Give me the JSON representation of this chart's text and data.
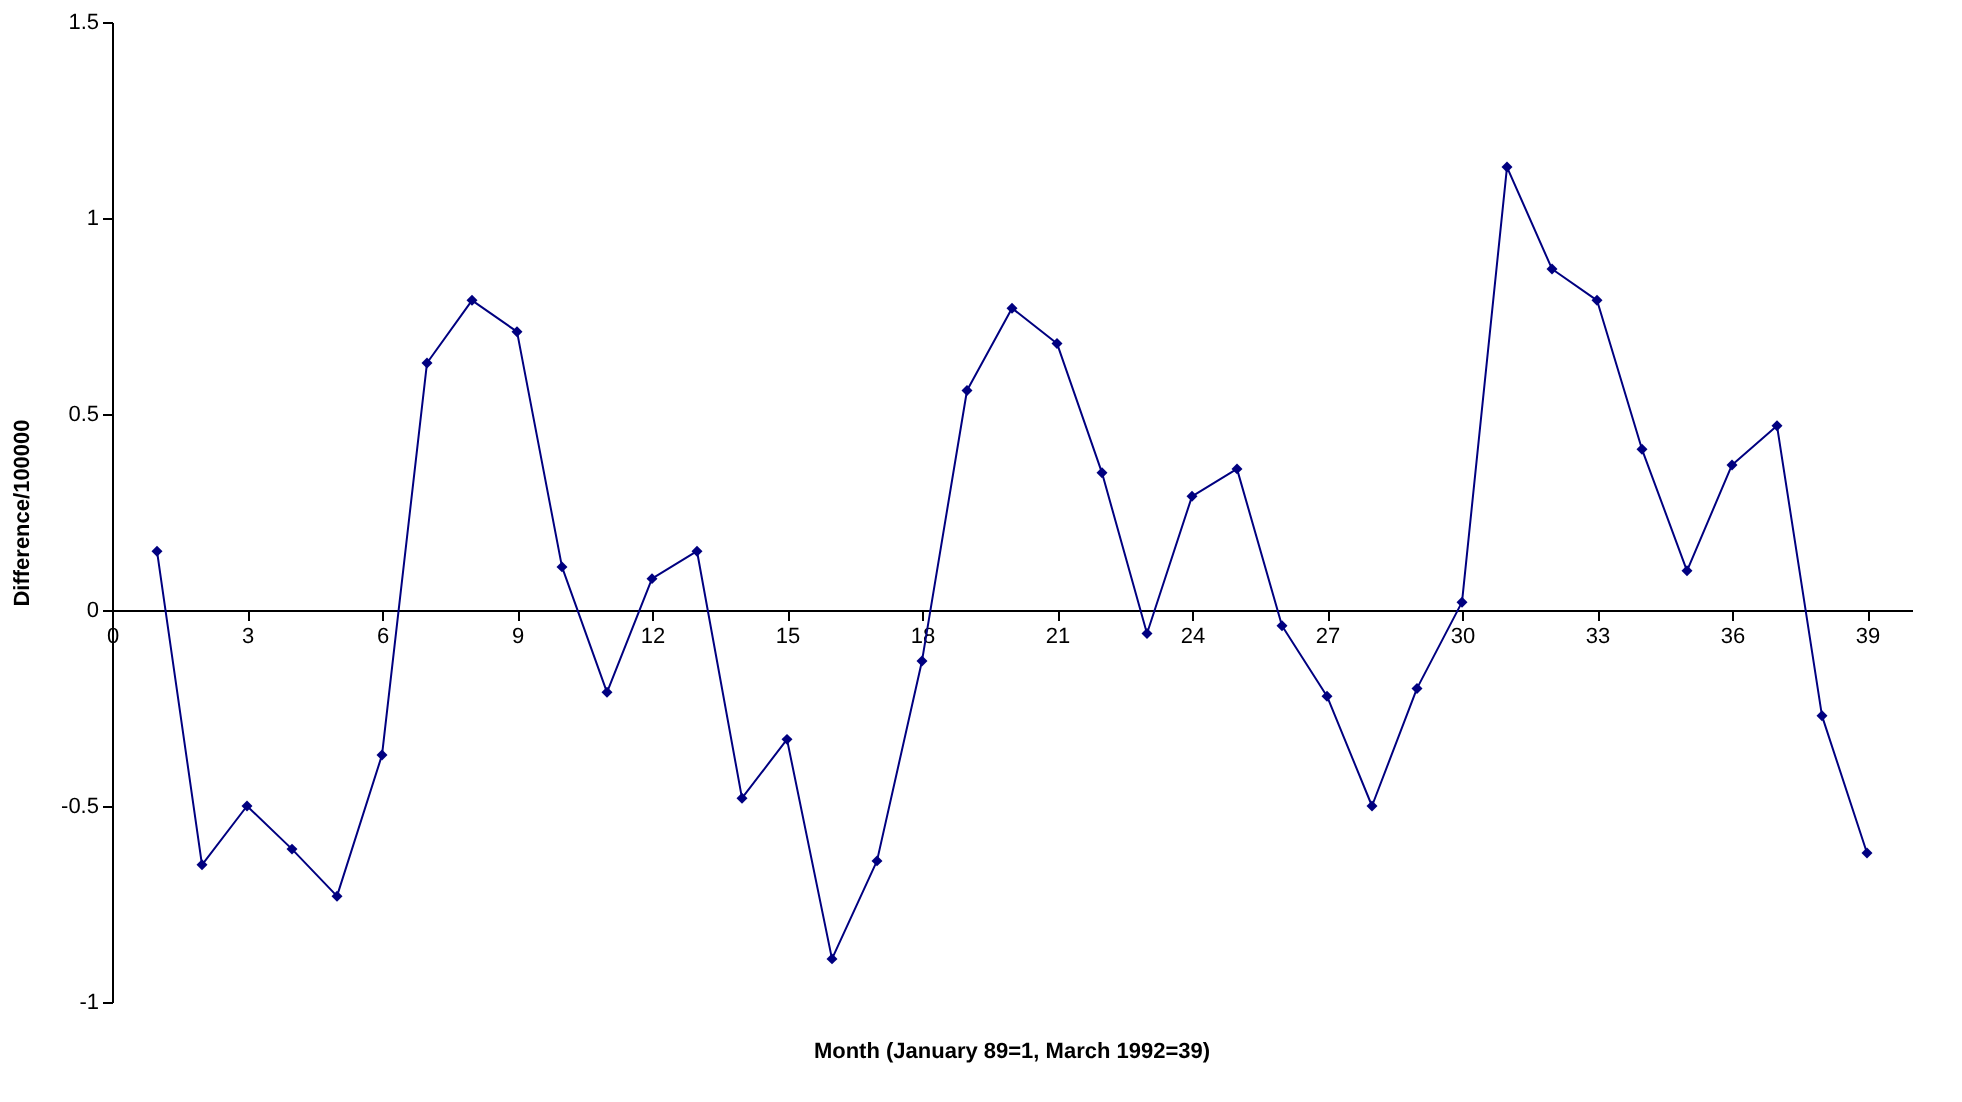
{
  "chart_data": {
    "type": "line",
    "xlabel": "Month (January 89=1, March 1992=39)",
    "ylabel": "Difference/100000",
    "x": [
      1,
      2,
      3,
      4,
      5,
      6,
      7,
      8,
      9,
      10,
      11,
      12,
      13,
      14,
      15,
      16,
      17,
      18,
      19,
      20,
      21,
      22,
      23,
      24,
      25,
      26,
      27,
      28,
      29,
      30,
      31,
      32,
      33,
      34,
      35,
      36,
      37,
      38,
      39
    ],
    "series": [
      {
        "color": "#000080",
        "values": [
          0.15,
          -0.65,
          -0.5,
          -0.61,
          -0.73,
          -0.37,
          0.63,
          0.79,
          0.71,
          0.11,
          -0.21,
          0.08,
          0.15,
          -0.48,
          -0.33,
          -0.89,
          -0.64,
          -0.13,
          0.56,
          0.77,
          0.68,
          0.35,
          -0.06,
          0.29,
          0.36,
          -0.04,
          -0.22,
          -0.5,
          -0.2,
          0.02,
          1.13,
          0.87,
          0.79,
          0.41,
          0.1,
          0.37,
          0.47,
          -0.27,
          -0.62
        ]
      }
    ],
    "xlim": [
      0,
      40
    ],
    "xticks": [
      0,
      3,
      6,
      9,
      12,
      15,
      18,
      21,
      24,
      27,
      30,
      33,
      36,
      39
    ],
    "ylim": [
      -1,
      1.5
    ],
    "yticks": [
      -1,
      -0.5,
      0,
      0.5,
      1,
      1.5
    ],
    "marker": "diamond",
    "line_style": "solid",
    "grid": false
  }
}
